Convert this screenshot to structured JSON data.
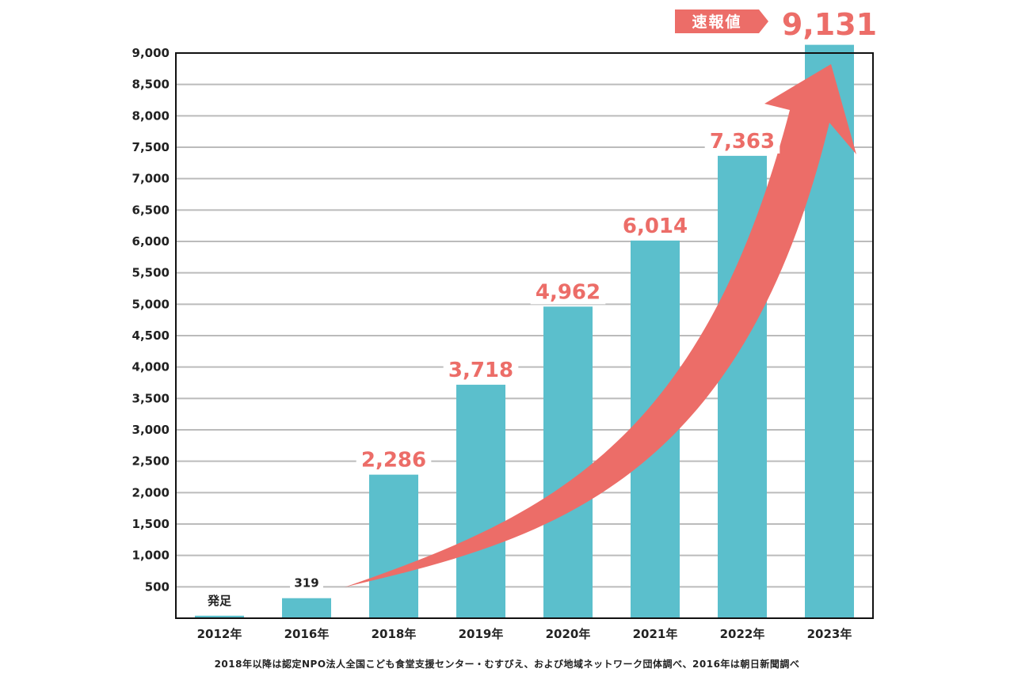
{
  "chart_data": {
    "type": "bar",
    "title": "",
    "xlabel": "",
    "ylabel": "",
    "ylim": [
      0,
      9000
    ],
    "yticks": [
      500,
      1000,
      1500,
      2000,
      2500,
      3000,
      3500,
      4000,
      4500,
      5000,
      5500,
      6000,
      6500,
      7000,
      7500,
      8000,
      8500,
      9000
    ],
    "ytick_labels": [
      "500",
      "1,000",
      "1,500",
      "2,000",
      "2,500",
      "3,000",
      "3,500",
      "4,000",
      "4,500",
      "5,000",
      "5,500",
      "6,000",
      "6,500",
      "7,000",
      "7,500",
      "8,000",
      "8,500",
      "9,000"
    ],
    "grid": true,
    "categories": [
      "2012年",
      "2016年",
      "2018年",
      "2019年",
      "2020年",
      "2021年",
      "2022年",
      "2023年"
    ],
    "values": [
      40,
      319,
      2286,
      3718,
      4962,
      6014,
      7363,
      9131
    ],
    "data_labels": [
      "発足",
      "319",
      "2,286",
      "3,718",
      "4,962",
      "6,014",
      "7,363",
      "9,131"
    ],
    "highlight_from": 2,
    "callout": {
      "label": "速報値",
      "category": "2023年",
      "value_label": "9,131"
    },
    "trend_arrow": {
      "from_category": "2016年",
      "to_category": "2023年"
    }
  },
  "colors": {
    "bar": "#5bbfcc",
    "accent": "#ec6d68",
    "grid": "#bbbbbb",
    "axis": "#111111",
    "text": "#222222"
  },
  "footnote": "2018年以降は認定NPO法人全国こども食堂支援センター・むすびえ、および地域ネットワーク団体調べ、2016年は朝日新聞調べ"
}
